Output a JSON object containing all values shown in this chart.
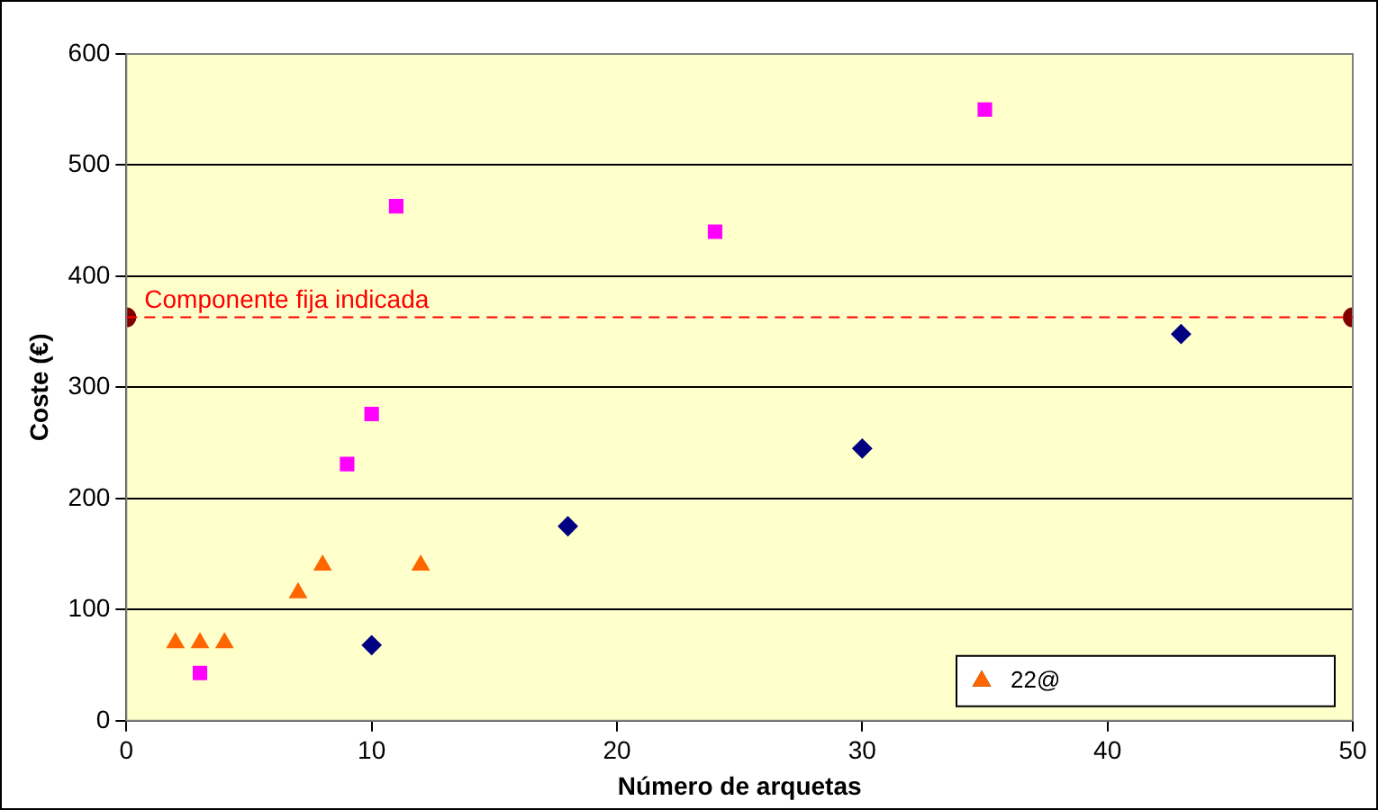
{
  "chart_data": {
    "type": "scatter",
    "xlabel": "Número de arquetas",
    "ylabel": "Coste (€)",
    "xlim": [
      0,
      50
    ],
    "xticks": [
      0,
      10,
      20,
      30,
      40,
      50
    ],
    "ylim": [
      0,
      600
    ],
    "yticks": [
      0,
      100,
      200,
      300,
      400,
      500,
      600
    ],
    "grid": "y",
    "legend": "bottom right",
    "series": [
      {
        "color": "#000080",
        "marker": "diamond",
        "x": [
          10,
          18,
          30,
          43
        ],
        "values": [
          68,
          175,
          245,
          348
        ]
      },
      {
        "color": "#ff00ff",
        "marker": "square",
        "x": [
          3,
          9,
          10,
          11,
          24,
          35
        ],
        "values": [
          43,
          231,
          276,
          463,
          440,
          550
        ]
      },
      {
        "name": "22@",
        "color": "#ff6600",
        "marker": "triangle",
        "x": [
          2,
          3,
          4,
          7,
          8,
          12
        ],
        "values": [
          70,
          70,
          70,
          115,
          140,
          140
        ]
      },
      {
        "color": "#800000",
        "marker": "circle",
        "x": [
          0,
          50
        ],
        "values": [
          363,
          363
        ]
      }
    ],
    "ref_lines": [
      {
        "axis": "y",
        "value": 363,
        "label": "Componente fija indicada",
        "color": "#ff0000",
        "line_style": "dashed"
      }
    ]
  }
}
